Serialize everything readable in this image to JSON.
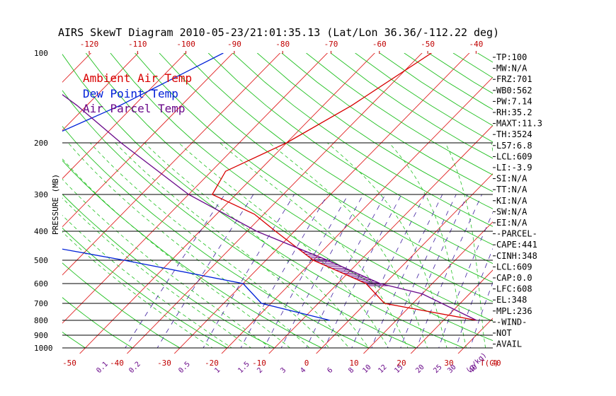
{
  "chart_data": {
    "type": "line",
    "title": "AIRS SkewT Diagram 2010-05-23/21:01:35.13 (Lat/Lon 36.36/-112.22 deg)",
    "ylabel": "PRESSURE (MB)",
    "x_unit_label": "T(C)",
    "mixing_unit_label": "(g/kg)",
    "pressure_ticks": [
      100,
      200,
      300,
      400,
      500,
      600,
      700,
      800,
      900,
      1000
    ],
    "pressure_ticks_visible": [
      100,
      200,
      300,
      400,
      500,
      600,
      700,
      800,
      900,
      1000
    ],
    "pressure_gridlines": [
      200,
      300,
      400,
      500,
      600,
      700,
      800,
      900,
      1000
    ],
    "top_temp_ticks": [
      -120,
      -110,
      -100,
      -90,
      -80,
      -70,
      -60,
      -50,
      -40
    ],
    "bottom_temp_ticks": [
      -50,
      -40,
      -30,
      -20,
      -10,
      0,
      10,
      20,
      30,
      40
    ],
    "mixing_ratio_ticks": [
      "0.1",
      "0.2",
      "0.5",
      "1",
      "1.5",
      "2",
      "3",
      "4",
      "6",
      "8",
      "10",
      "12",
      "15",
      "20",
      "25",
      "30",
      "40"
    ],
    "series": [
      {
        "name": "Ambient Air Temp",
        "color": "#d80000",
        "pressure": [
          100,
          150,
          200,
          250,
          300,
          350,
          400,
          500,
          600,
          700,
          800
        ],
        "values": [
          -38,
          -44,
          -50,
          -57,
          -55,
          -42,
          -34,
          -20,
          -4,
          4,
          27
        ]
      },
      {
        "name": "Dew Point Temp",
        "color": "#0020d8",
        "pressure": [
          100,
          150,
          200,
          250,
          300,
          400,
          500,
          600,
          700,
          800
        ],
        "values": [
          -82,
          -93,
          -103,
          -107,
          -110,
          -100,
          -60,
          -30,
          -22,
          -4
        ]
      },
      {
        "name": "Air Parcel Temp",
        "color": "#6a0a8a",
        "pressure": [
          100,
          150,
          200,
          300,
          400,
          500,
          600,
          650,
          800
        ],
        "values": [
          -128,
          -102,
          -85,
          -60,
          -38,
          -17,
          -1,
          10,
          27
        ]
      }
    ],
    "stats": [
      "TP:100",
      "MW:N/A",
      "FRZ:701",
      "WB0:562",
      "PW:7.14",
      "RH:35.2",
      "MAXT:11.3",
      "TH:3524",
      "L57:6.8",
      "LCL:609",
      "LI:-3.9",
      "SI:N/A",
      "TT:N/A",
      "KI:N/A",
      "SW:N/A",
      "EI:N/A",
      "-PARCEL-",
      "CAPE:441",
      "CINH:348",
      "LCL:609",
      "CAP:0.0",
      "LFC:608",
      "EL:348",
      "MPL:236",
      "-WIND-",
      "NOT",
      "AVAIL"
    ]
  },
  "colors": {
    "isotherm": "#e02020",
    "dry_adiabat": "#20c020",
    "moist_adiabat": "#20c020",
    "mixing_ratio": "#4020a0",
    "cape_fill": "#6a0a8a"
  }
}
